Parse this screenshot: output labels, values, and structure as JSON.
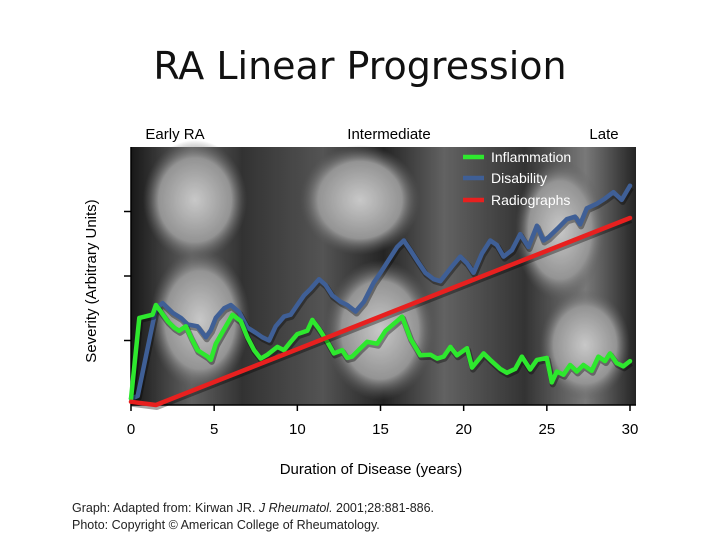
{
  "slide": {
    "title": "RA Linear Progression",
    "source_line1_a": "Graph: Adapted from: Kirwan JR. ",
    "source_line1_journal": "J Rheumatol.",
    "source_line1_b": " 2001;28:881-886.",
    "source_line2": "Photo: Copyright © American College of Rheumatology."
  },
  "chart_data": {
    "type": "line",
    "title": "",
    "xlabel": "Duration of Disease (years)",
    "ylabel": "Severity (Arbitrary Units)",
    "xlim": [
      0,
      30
    ],
    "ylim": [
      0,
      4
    ],
    "xticks": [
      0,
      5,
      10,
      15,
      20,
      25,
      30
    ],
    "phases": [
      "Early RA",
      "Intermediate",
      "Late"
    ],
    "legend_position": "top-right",
    "grid": false,
    "series": [
      {
        "name": "Inflammation",
        "color": "#2ee82e",
        "x": [
          0,
          0.5,
          1.3,
          1.5,
          1.7,
          2.2,
          2.6,
          2.9,
          3.3,
          3.6,
          4.0,
          4.6,
          4.8,
          5.1,
          6.1,
          6.6,
          7.0,
          7.4,
          7.8,
          8.2,
          8.8,
          9.2,
          9.6,
          10.0,
          10.6,
          10.9,
          11.3,
          11.8,
          12.2,
          12.7,
          13.0,
          13.3,
          13.8,
          14.2,
          14.8,
          15.3,
          15.9,
          16.3,
          16.8,
          17.4,
          18.0,
          18.4,
          18.8,
          19.2,
          19.6,
          20.2,
          20.5,
          21.2,
          21.6,
          22.2,
          22.6,
          23.1,
          23.5,
          24.0,
          24.4,
          25.0,
          25.3,
          25.6,
          26.0,
          26.4,
          26.8,
          27.2,
          27.7,
          28.1,
          28.5,
          28.8,
          29.2,
          29.6,
          30.0
        ],
        "y": [
          0.1,
          1.35,
          1.4,
          1.55,
          1.48,
          1.3,
          1.2,
          1.15,
          1.22,
          1.05,
          0.85,
          0.75,
          0.7,
          0.95,
          1.4,
          1.3,
          1.05,
          0.85,
          0.72,
          0.78,
          0.9,
          0.85,
          0.98,
          1.1,
          1.15,
          1.32,
          1.18,
          0.98,
          0.8,
          0.85,
          0.73,
          0.75,
          0.88,
          0.98,
          0.95,
          1.15,
          1.28,
          1.37,
          1.03,
          0.77,
          0.78,
          0.72,
          0.75,
          0.9,
          0.77,
          0.88,
          0.58,
          0.8,
          0.7,
          0.56,
          0.5,
          0.56,
          0.75,
          0.55,
          0.7,
          0.73,
          0.35,
          0.52,
          0.47,
          0.62,
          0.52,
          0.62,
          0.53,
          0.75,
          0.68,
          0.8,
          0.65,
          0.6,
          0.68
        ]
      },
      {
        "name": "Disability",
        "color": "#3f5f96",
        "x": [
          0,
          0.4,
          1.5,
          1.9,
          2.5,
          3.0,
          3.4,
          4.0,
          4.5,
          4.8,
          5.1,
          5.6,
          6.0,
          6.5,
          7.0,
          7.5,
          7.9,
          8.3,
          8.7,
          9.2,
          9.6,
          10.0,
          10.4,
          10.8,
          11.3,
          11.7,
          12.1,
          12.6,
          13.0,
          13.5,
          14.0,
          14.6,
          15.0,
          15.5,
          16.0,
          16.4,
          16.8,
          17.3,
          17.7,
          18.2,
          18.6,
          19.0,
          19.4,
          19.8,
          20.2,
          20.6,
          21.1,
          21.6,
          22.0,
          22.4,
          22.9,
          23.4,
          23.9,
          24.4,
          24.8,
          25.1,
          25.7,
          26.2,
          26.7,
          27.0,
          27.4,
          28.0,
          28.5,
          29.0,
          29.5,
          30.0
        ],
        "y": [
          0.1,
          0.14,
          1.5,
          1.58,
          1.43,
          1.35,
          1.25,
          1.22,
          1.05,
          1.16,
          1.35,
          1.5,
          1.55,
          1.44,
          1.2,
          1.12,
          1.05,
          1.0,
          1.22,
          1.37,
          1.4,
          1.55,
          1.7,
          1.8,
          1.95,
          1.86,
          1.7,
          1.6,
          1.55,
          1.45,
          1.6,
          1.9,
          2.05,
          2.25,
          2.45,
          2.55,
          2.4,
          2.2,
          2.05,
          1.95,
          1.92,
          2.05,
          2.18,
          2.3,
          2.2,
          2.05,
          2.35,
          2.55,
          2.48,
          2.3,
          2.4,
          2.65,
          2.45,
          2.78,
          2.55,
          2.6,
          2.75,
          2.88,
          2.92,
          2.8,
          3.05,
          3.12,
          3.2,
          3.3,
          3.18,
          3.4
        ]
      },
      {
        "name": "Radiographs",
        "color": "#e8201f",
        "x": [
          0,
          1.5,
          30
        ],
        "y": [
          0.05,
          0.0,
          2.9
        ]
      }
    ]
  }
}
